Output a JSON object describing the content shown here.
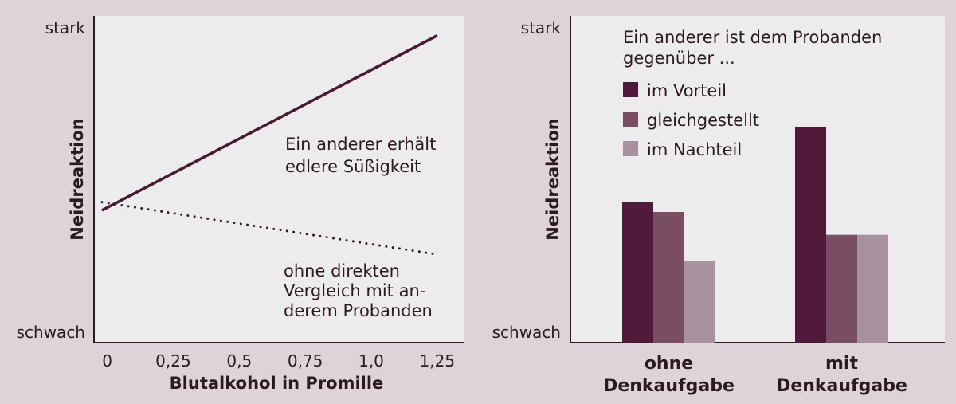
{
  "chart_data": [
    {
      "type": "line",
      "xlabel": "Blutalkohol in Promille",
      "ylabel": "Neidreaktion",
      "y_tick_labels": {
        "high": "stark",
        "low": "schwach"
      },
      "x_ticks": [
        0,
        0.25,
        0.5,
        0.75,
        1.0,
        1.25
      ],
      "x_tick_labels": [
        "0",
        "0,25",
        "0,5",
        "0,75",
        "1,0",
        "1,25"
      ],
      "xlim": [
        -0.05,
        1.35
      ],
      "ylim": [
        0,
        100
      ],
      "series": [
        {
          "label_lines": [
            "Ein anderer erhält",
            "edlere Süßigkeit"
          ],
          "style": "solid",
          "color": "#4a1a32",
          "x": [
            -0.02,
            1.25
          ],
          "y": [
            40.5,
            94
          ]
        },
        {
          "label_lines": [
            "ohne direkten",
            "Vergleich mit an-",
            "derem Probanden"
          ],
          "style": "dotted",
          "color": "#2b1a22",
          "x": [
            -0.02,
            1.25
          ],
          "y": [
            43,
            27
          ]
        }
      ]
    },
    {
      "type": "bar",
      "ylabel": "Neidreaktion",
      "y_tick_labels": {
        "high": "stark",
        "low": "schwach"
      },
      "ylim": [
        0,
        100
      ],
      "legend_title_lines": [
        "Ein anderer ist dem Probanden",
        "gegenüber ..."
      ],
      "categories": [
        [
          "ohne",
          "Denkaufgabe"
        ],
        [
          "mit",
          "Denkaufgabe"
        ]
      ],
      "series": [
        {
          "name": "im Vorteil",
          "color": "#521a3a",
          "values": [
            43,
            66
          ]
        },
        {
          "name": "gleichgestellt",
          "color": "#7a4e62",
          "values": [
            40,
            33
          ]
        },
        {
          "name": "im Nachteil",
          "color": "#a8919e",
          "values": [
            25,
            33
          ]
        }
      ]
    }
  ]
}
